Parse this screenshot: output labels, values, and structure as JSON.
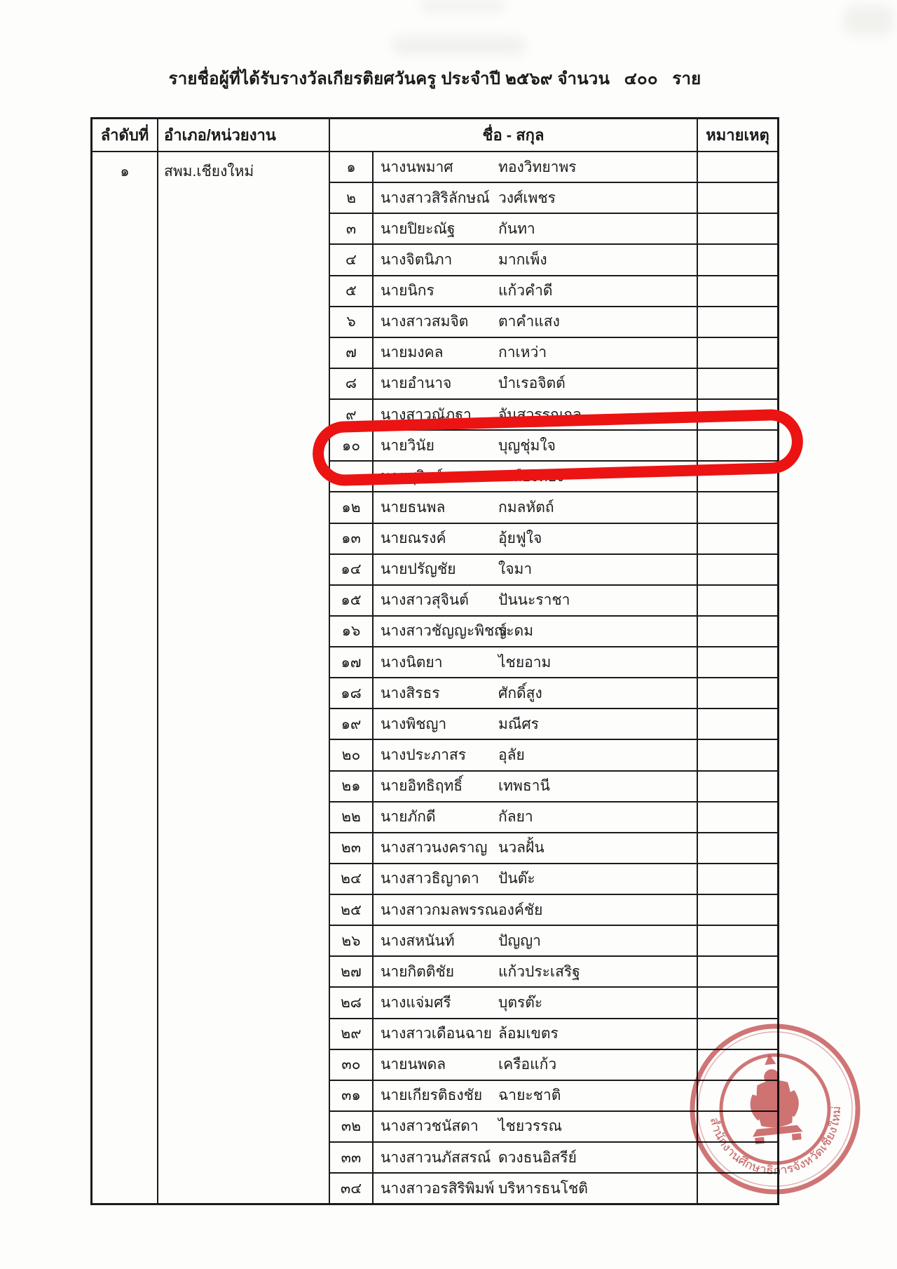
{
  "page": {
    "title": "รายชื่อผู้ที่ได้รับรางวัลเกียรติยศวันครู ประจำปี ๒๕๖๙ จำนวน   ๔๐๐   ราย"
  },
  "table": {
    "headers": {
      "index": "ลำดับที่",
      "unit": "อำเภอ/หน่วยงาน",
      "name": "ชื่อ - สกุล",
      "remark": "หมายเหตุ"
    },
    "group": {
      "index": "๑",
      "unit": "สพม.เชียงใหม่"
    },
    "rows": [
      {
        "no": "๑",
        "first": "นางนพมาศ",
        "last": "ทองวิทยาพร"
      },
      {
        "no": "๒",
        "first": "นางสาวสิริลักษณ์",
        "last": "วงศ์เพชร"
      },
      {
        "no": "๓",
        "first": "นายปิยะณัฐ",
        "last": "กันทา"
      },
      {
        "no": "๔",
        "first": "นางจิตนิภา",
        "last": "มากเพ็ง"
      },
      {
        "no": "๕",
        "first": "นายนิกร",
        "last": "แก้วคำดี"
      },
      {
        "no": "๖",
        "first": "นางสาวสมจิต",
        "last": "ตาคำแสง"
      },
      {
        "no": "๗",
        "first": "นายมงคล",
        "last": "กาเหว่า"
      },
      {
        "no": "๘",
        "first": "นายอำนาจ",
        "last": "บำเรอจิตต์"
      },
      {
        "no": "๙",
        "first": "นางสาวณัฏฐา",
        "last": "จันสวรรณกุล"
      },
      {
        "no": "๑๐",
        "first": "นายวินัย",
        "last": "บุญชุ่มใจ"
      },
      {
        "no": "๑๑",
        "first": "นายสุวิทย์",
        "last": "เหลืองทอง"
      },
      {
        "no": "๑๒",
        "first": "นายธนพล",
        "last": "กมลหัตถ์"
      },
      {
        "no": "๑๓",
        "first": "นายณรงค์",
        "last": "อุ้ยฟูใจ"
      },
      {
        "no": "๑๔",
        "first": "นายปรัญชัย",
        "last": "ใจมา"
      },
      {
        "no": "๑๕",
        "first": "นางสาวสุจินต์",
        "last": "ปันนะราชา"
      },
      {
        "no": "๑๖",
        "first": "นางสาวชัญญะพิชญ์",
        "last": "ระดม"
      },
      {
        "no": "๑๗",
        "first": "นางนิตยา",
        "last": "ไชยอาม"
      },
      {
        "no": "๑๘",
        "first": "นางสิรธร",
        "last": "ศักดิ์สูง"
      },
      {
        "no": "๑๙",
        "first": "นางพิชญา",
        "last": "มณีศร"
      },
      {
        "no": "๒๐",
        "first": "นางประภาสร",
        "last": "อุลัย"
      },
      {
        "no": "๒๑",
        "first": "นายอิทธิฤทธิ์",
        "last": "เทพธานี"
      },
      {
        "no": "๒๒",
        "first": "นายภักดี",
        "last": "กัลยา"
      },
      {
        "no": "๒๓",
        "first": "นางสาวนงคราญ",
        "last": "นวลฝั้น"
      },
      {
        "no": "๒๔",
        "first": "นางสาวธิญาดา",
        "last": "ปันต๊ะ"
      },
      {
        "no": "๒๕",
        "first": "นางสาวกมลพรรณ",
        "last": "องค์ชัย"
      },
      {
        "no": "๒๖",
        "first": "นางสหนันท์",
        "last": "ปัญญา"
      },
      {
        "no": "๒๗",
        "first": "นายกิตติชัย",
        "last": "แก้วประเสริฐ"
      },
      {
        "no": "๒๘",
        "first": "นางแจ่มศรี",
        "last": "บุตรต๊ะ"
      },
      {
        "no": "๒๙",
        "first": "นางสาวเดือนฉาย",
        "last": "ล้อมเขตร"
      },
      {
        "no": "๓๐",
        "first": "นายนพดล",
        "last": "เครือแก้ว"
      },
      {
        "no": "๓๑",
        "first": "นายเกียรติธงชัย",
        "last": "ฉายะชาติ"
      },
      {
        "no": "๓๒",
        "first": "นางสาวชนัสดา",
        "last": "ไชยวรรณ"
      },
      {
        "no": "๓๓",
        "first": "นางสาวนภัสสรณ์",
        "last": "ดวงธนอิสรีย์"
      },
      {
        "no": "๓๔",
        "first": "นางสาวอรสิริพิมพ์",
        "last": "บริหารธนโชติ"
      }
    ]
  },
  "annotations": {
    "highlighted_row_no": "๑๐",
    "highlight_color": "#ec1313"
  },
  "stamp": {
    "text": "สำนักงานศึกษาธิการจังหวัดเชียงใหม่",
    "color": "#c04545"
  }
}
